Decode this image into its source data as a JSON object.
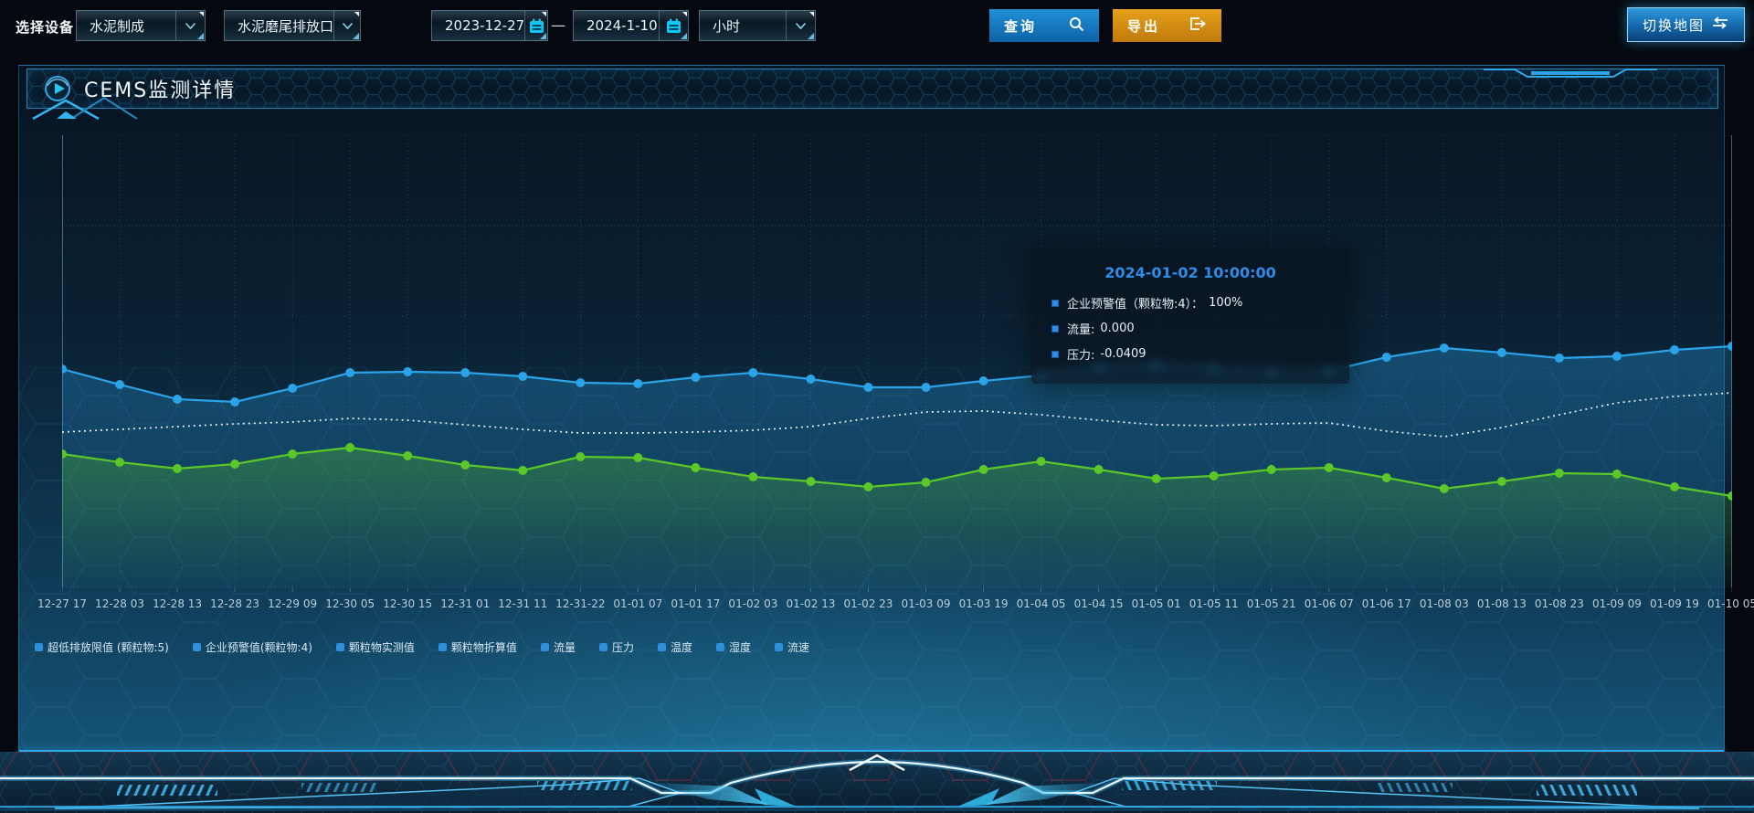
{
  "toolbar": {
    "device_label": "选择设备",
    "process_dropdown_value": "水泥制成",
    "outlet_dropdown_value": "水泥磨尾排放口",
    "start_date_value": "2023-12-27",
    "date_separator": "—",
    "end_date_value": "2024-1-10",
    "interval_dropdown_value": "小时",
    "query_button_label": "查询",
    "export_button_label": "导出",
    "switch_map_button_label": "切换地图"
  },
  "panel": {
    "title": "CEMS监测详情"
  },
  "tooltip": {
    "title": "2024-01-02 10:00:00",
    "rows": [
      {
        "label": "企业预警值（颗粒物:4）：",
        "value": "100%"
      },
      {
        "label": "流量:",
        "value": "0.000"
      },
      {
        "label": "压力:",
        "value": "-0.0409"
      }
    ]
  },
  "legend": {
    "marker_color": "#2f8fd8",
    "items": [
      "超低排放限值 (颗粒物:5)",
      "企业预警值(颗粒物:4)",
      "颗粒物实测值",
      "颗粒物折算值",
      "流量",
      "压力",
      "温度",
      "湿度",
      "流速"
    ]
  },
  "chart_data": {
    "type": "line",
    "title": "",
    "xlabel": "",
    "ylabel": "",
    "grid": true,
    "legend_position": "bottom",
    "y_axis": {
      "tick_labels_visible": false,
      "value_scale": "estimated percent of plot height (0-100), no axis labels shown"
    },
    "categories": [
      "12-27 17",
      "12-28 03",
      "12-28 13",
      "12-28 23",
      "12-29 09",
      "12-30 05",
      "12-30 15",
      "12-31 01",
      "12-31 11",
      "12-31-22",
      "01-01 07",
      "01-01 17",
      "01-02 03",
      "01-02 13",
      "01-02 23",
      "01-03 09",
      "01-03 19",
      "01-04 05",
      "01-04 15",
      "01-05 01",
      "01-05 11",
      "01-05 21",
      "01-06 07",
      "01-06 17",
      "01-08 03",
      "01-08 13",
      "01-08 23",
      "01-09 09",
      "01-09 19",
      "01-10 05"
    ],
    "series": [
      {
        "name": "企业预警值(颗粒物:4)",
        "color": "#2aa3e8",
        "line_style": "solid",
        "symbols": true,
        "area": true,
        "values": [
          48.8,
          45.4,
          42.2,
          41.6,
          44.6,
          48.0,
          48.2,
          48.0,
          47.2,
          45.8,
          45.6,
          47.0,
          48.0,
          46.6,
          44.8,
          44.8,
          46.2,
          47.4,
          49.4,
          49.8,
          49.0,
          48.4,
          48.4,
          51.4,
          53.4,
          52.4,
          51.2,
          51.6,
          53.0,
          53.8
        ]
      },
      {
        "name": "流量",
        "color": "#e8f0f4",
        "line_style": "dotted",
        "symbols": false,
        "area": false,
        "values": [
          35.0,
          35.6,
          36.2,
          36.8,
          37.2,
          38.0,
          37.6,
          36.6,
          35.6,
          34.8,
          34.8,
          35.0,
          35.4,
          36.2,
          38.0,
          39.4,
          39.6,
          38.8,
          37.6,
          36.6,
          36.4,
          36.8,
          37.0,
          35.2,
          34.0,
          36.0,
          38.8,
          41.4,
          42.8,
          43.6
        ]
      },
      {
        "name": "压力",
        "color": "#5ac828",
        "line_style": "solid",
        "symbols": true,
        "area": true,
        "values": [
          30.2,
          28.4,
          27.0,
          28.0,
          30.2,
          31.6,
          29.8,
          27.8,
          26.6,
          29.6,
          29.4,
          27.2,
          25.2,
          24.2,
          23.0,
          24.0,
          26.8,
          28.6,
          26.8,
          24.8,
          25.4,
          26.8,
          27.2,
          25.0,
          22.6,
          24.2,
          26.0,
          25.8,
          23.0,
          21.0
        ]
      }
    ]
  },
  "colors": {
    "accent_cyan": "#2fa8e8",
    "query_button_bg": "#1583c8",
    "export_button_bg": "#d8960f",
    "tooltip_title": "#2e8ce6",
    "series_blue": "#2aa3e8",
    "series_green": "#5ac828",
    "series_white_dotted": "#e8f0f4"
  }
}
